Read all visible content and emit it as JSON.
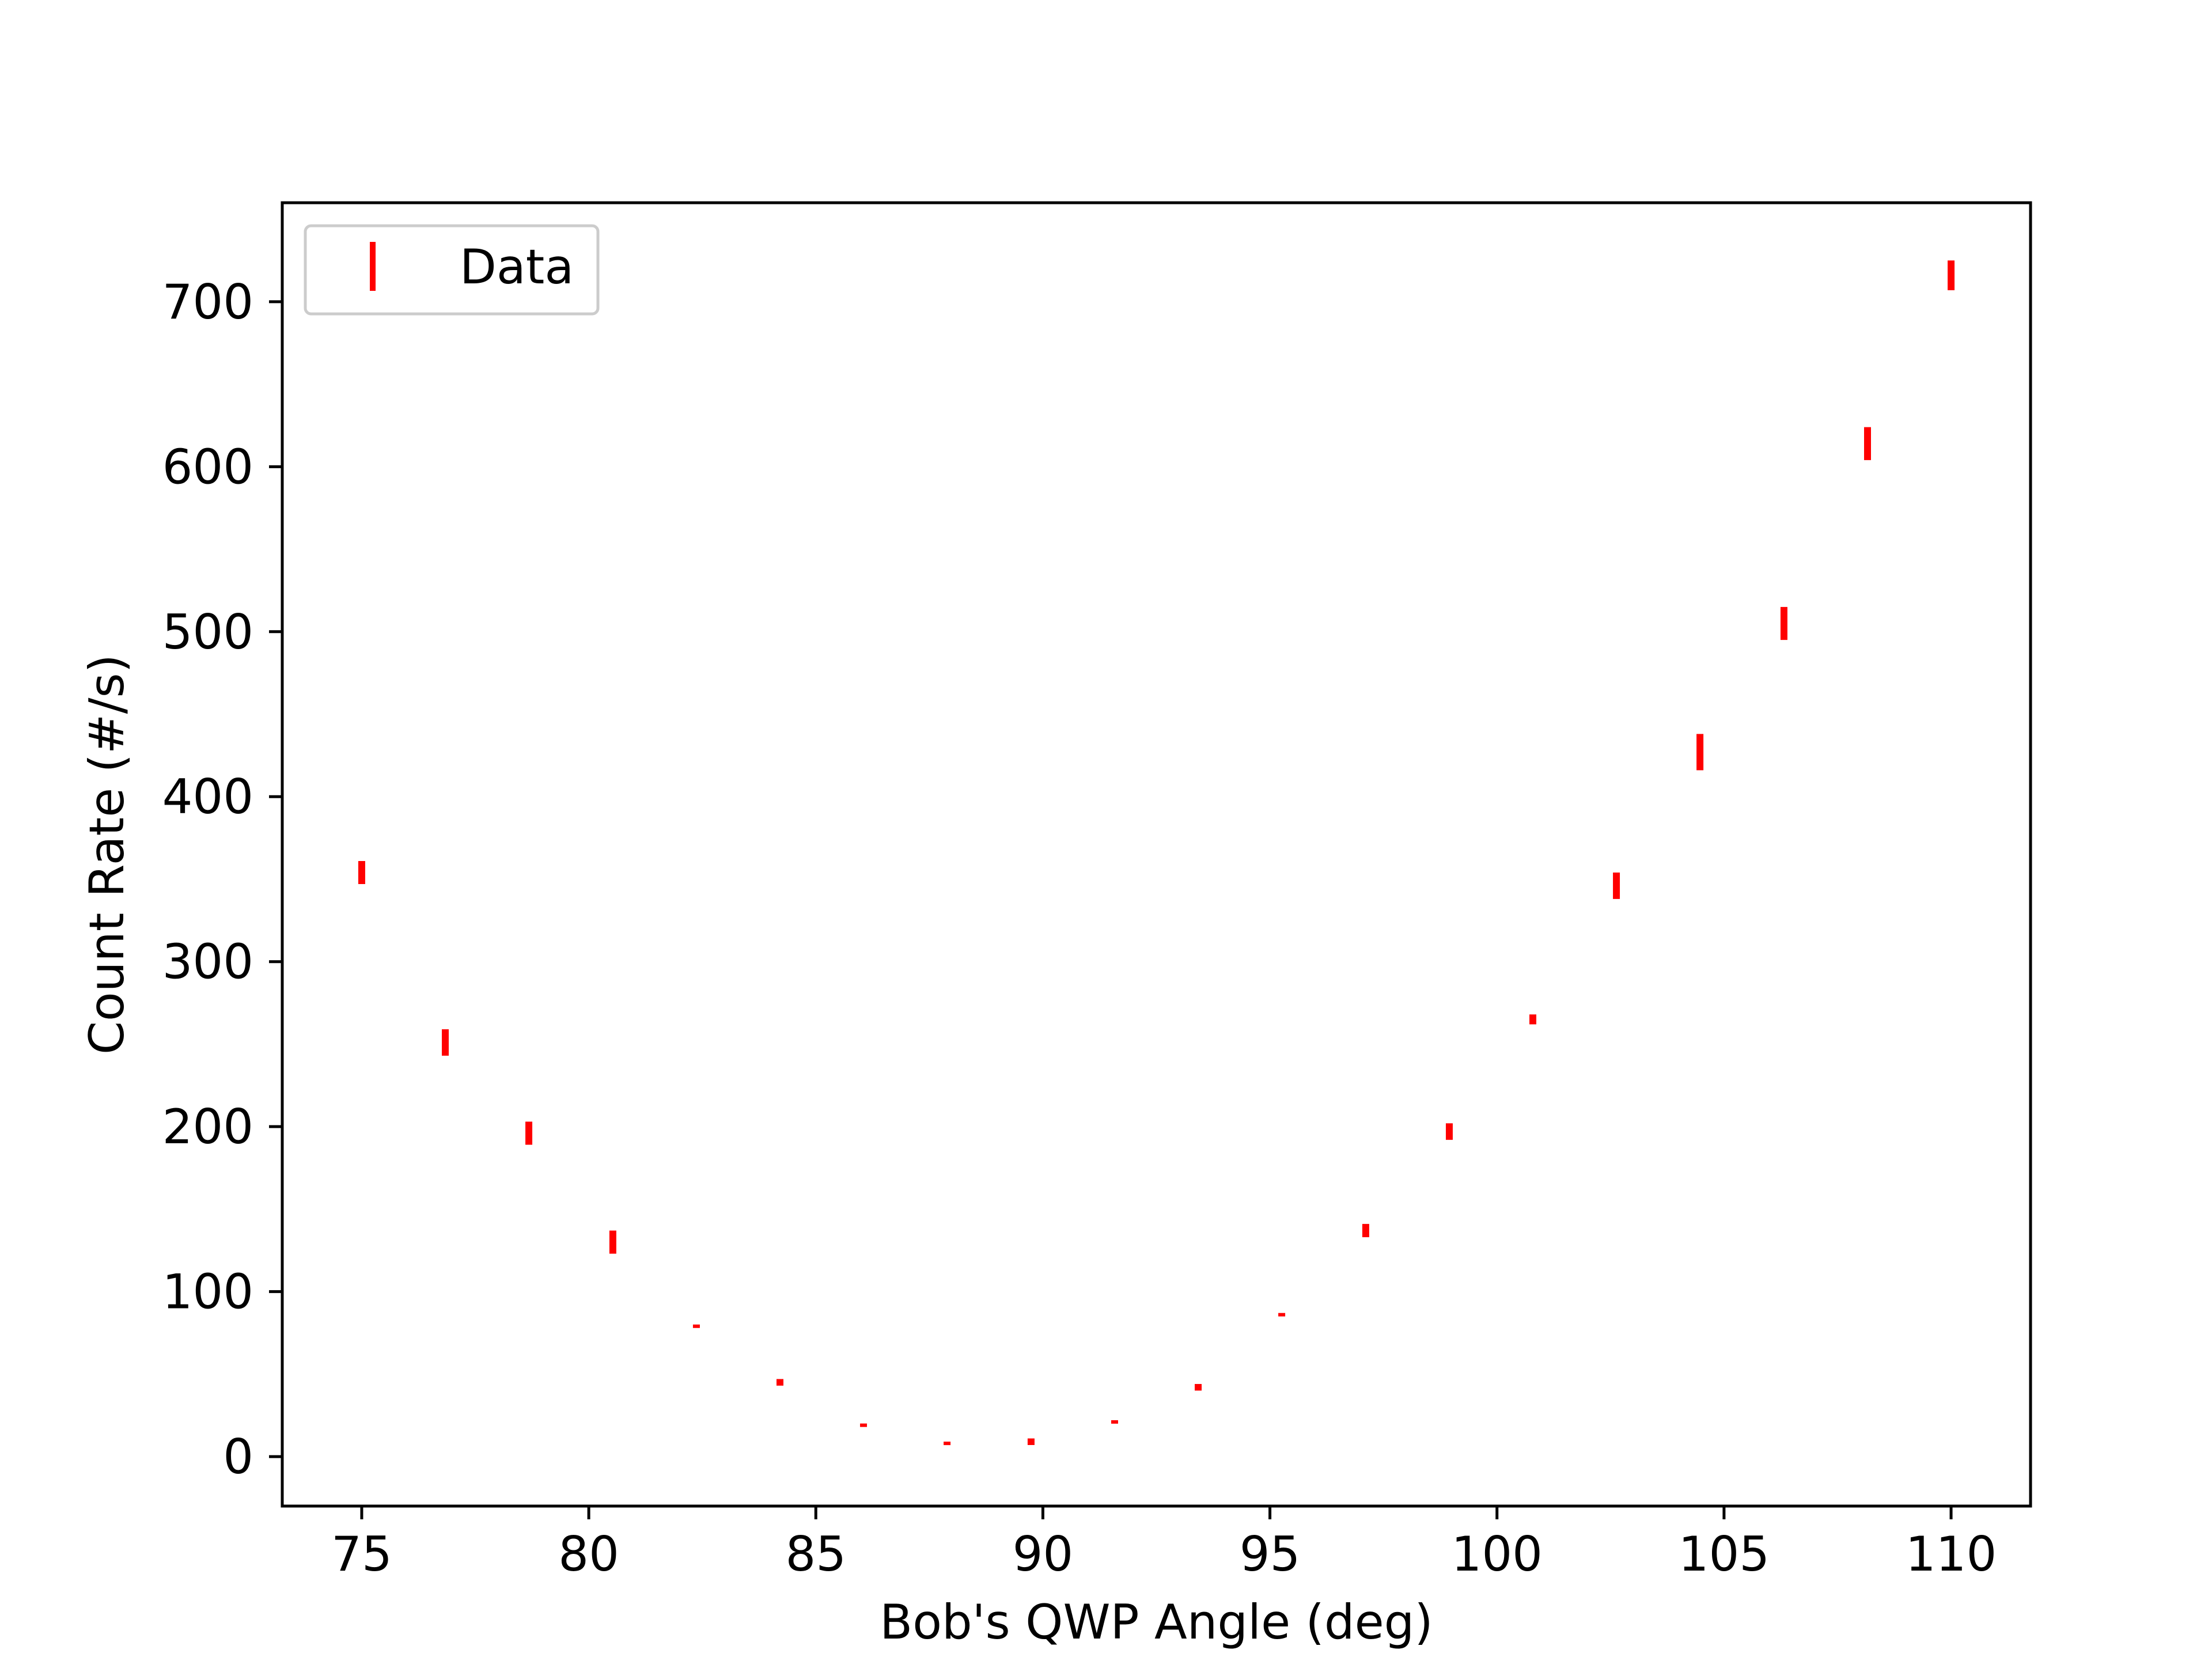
{
  "chart_data": {
    "type": "scatter",
    "title": "",
    "xlabel": "Bob's QWP Angle (deg)",
    "ylabel": "Count Rate (#/s)",
    "xlim": [
      73.25,
      111.75
    ],
    "ylim": [
      -30,
      760
    ],
    "xticks": [
      75,
      80,
      85,
      90,
      95,
      100,
      105,
      110
    ],
    "yticks": [
      0,
      100,
      200,
      300,
      400,
      500,
      600,
      700
    ],
    "grid": false,
    "legend": {
      "position": "upper left",
      "entries": [
        "Data"
      ]
    },
    "series": [
      {
        "name": "Data",
        "color": "#ff0000",
        "marker": "vertical error bar",
        "points": [
          {
            "x": 75.0,
            "y": 354,
            "err": 7
          },
          {
            "x": 76.84,
            "y": 251,
            "err": 8
          },
          {
            "x": 78.68,
            "y": 196,
            "err": 7
          },
          {
            "x": 80.53,
            "y": 130,
            "err": 7
          },
          {
            "x": 82.37,
            "y": 79,
            "err": 1
          },
          {
            "x": 84.21,
            "y": 45,
            "err": 2
          },
          {
            "x": 86.05,
            "y": 19,
            "err": 1
          },
          {
            "x": 87.89,
            "y": 8,
            "err": 0.7
          },
          {
            "x": 89.74,
            "y": 9,
            "err": 2
          },
          {
            "x": 91.58,
            "y": 21,
            "err": 1
          },
          {
            "x": 93.42,
            "y": 42,
            "err": 2
          },
          {
            "x": 95.26,
            "y": 86,
            "err": 1
          },
          {
            "x": 97.11,
            "y": 137,
            "err": 4
          },
          {
            "x": 98.95,
            "y": 197,
            "err": 5
          },
          {
            "x": 100.79,
            "y": 265,
            "err": 3
          },
          {
            "x": 102.63,
            "y": 346,
            "err": 8
          },
          {
            "x": 104.47,
            "y": 427,
            "err": 11
          },
          {
            "x": 106.32,
            "y": 505,
            "err": 10
          },
          {
            "x": 108.16,
            "y": 614,
            "err": 10
          },
          {
            "x": 110.0,
            "y": 716,
            "err": 9
          }
        ]
      }
    ]
  }
}
